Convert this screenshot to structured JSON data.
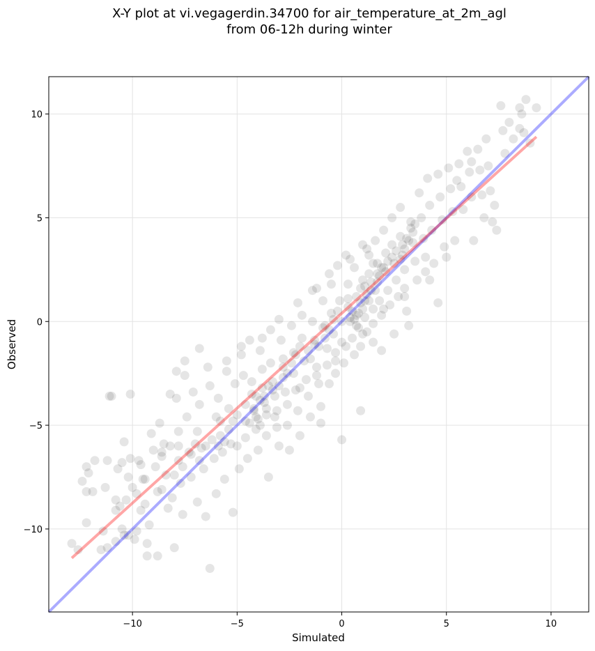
{
  "chart_data": {
    "type": "scatter",
    "title": [
      "X-Y plot at vi.vegagerdin.34700 for air_temperature_at_2m_agl",
      "from 06-12h during winter"
    ],
    "xlabel": "Simulated",
    "ylabel": "Observed",
    "xlim": [
      -14.0,
      11.8
    ],
    "ylim": [
      -14.0,
      11.8
    ],
    "xticks": [
      -10,
      -5,
      0,
      5,
      10
    ],
    "yticks": [
      -10,
      -5,
      0,
      5,
      10
    ],
    "xtick_labels": [
      "−10",
      "−5",
      "0",
      "5",
      "10"
    ],
    "ytick_labels": [
      "−10",
      "−5",
      "0",
      "5",
      "10"
    ],
    "grid": true,
    "marker_color": "#000000",
    "marker_alpha": 0.1,
    "fit_line": {
      "color": "#ff0000",
      "alpha": 0.35,
      "x": [
        -12.9,
        9.3
      ],
      "y": [
        -11.4,
        8.9
      ]
    },
    "identity_line": {
      "color": "#0000ff",
      "alpha": 0.33,
      "x": [
        -14.0,
        11.8
      ],
      "y": [
        -14.0,
        11.8
      ]
    },
    "points": [
      [
        -12.9,
        -10.7
      ],
      [
        -12.6,
        -11.0
      ],
      [
        -12.4,
        -7.7
      ],
      [
        -12.2,
        -7.0
      ],
      [
        -12.2,
        -8.2
      ],
      [
        -12.1,
        -7.3
      ],
      [
        -12.2,
        -9.7
      ],
      [
        -11.9,
        -8.2
      ],
      [
        -11.4,
        -10.1
      ],
      [
        -11.3,
        -8.0
      ],
      [
        -11.2,
        -6.7
      ],
      [
        -11.2,
        -10.9
      ],
      [
        -11.1,
        -3.6
      ],
      [
        -11.0,
        -3.6
      ],
      [
        -10.8,
        -8.6
      ],
      [
        -10.8,
        -9.1
      ],
      [
        -10.7,
        -7.1
      ],
      [
        -10.6,
        -8.9
      ],
      [
        -10.5,
        -10.0
      ],
      [
        -10.4,
        -10.3
      ],
      [
        -10.4,
        -5.8
      ],
      [
        -10.3,
        -8.6
      ],
      [
        -10.2,
        -7.5
      ],
      [
        -10.1,
        -3.5
      ],
      [
        -10.1,
        -6.6
      ],
      [
        -10.0,
        -8.0
      ],
      [
        -9.9,
        -10.5
      ],
      [
        -9.8,
        -8.3
      ],
      [
        -9.7,
        -6.7
      ],
      [
        -9.8,
        -10.1
      ],
      [
        -9.6,
        -6.9
      ],
      [
        -9.5,
        -7.6
      ],
      [
        -9.4,
        -8.8
      ],
      [
        -9.3,
        -10.7
      ],
      [
        -9.2,
        -9.8
      ],
      [
        -9.1,
        -5.4
      ],
      [
        -9.0,
        -6.2
      ],
      [
        -8.9,
        -7.0
      ],
      [
        -8.8,
        -11.3
      ],
      [
        -8.7,
        -4.9
      ],
      [
        -8.6,
        -6.3
      ],
      [
        -8.6,
        -8.1
      ],
      [
        -8.5,
        -5.9
      ],
      [
        -8.4,
        -7.4
      ],
      [
        -8.3,
        -9.0
      ],
      [
        -8.2,
        -6.0
      ],
      [
        -8.1,
        -8.5
      ],
      [
        -8.0,
        -10.9
      ],
      [
        -7.9,
        -2.4
      ],
      [
        -7.9,
        -3.7
      ],
      [
        -7.8,
        -5.3
      ],
      [
        -7.8,
        -6.7
      ],
      [
        -7.7,
        -7.8
      ],
      [
        -7.6,
        -9.3
      ],
      [
        -7.5,
        -2.6
      ],
      [
        -7.4,
        -4.6
      ],
      [
        -7.3,
        -6.3
      ],
      [
        -7.2,
        -7.5
      ],
      [
        -7.1,
        -3.4
      ],
      [
        -7.0,
        -5.9
      ],
      [
        -6.9,
        -8.7
      ],
      [
        -6.8,
        -1.3
      ],
      [
        -6.8,
        -4.0
      ],
      [
        -6.7,
        -6.1
      ],
      [
        -6.6,
        -7.1
      ],
      [
        -6.5,
        -9.4
      ],
      [
        -6.4,
        -2.2
      ],
      [
        -6.3,
        -3.1
      ],
      [
        -6.2,
        -5.7
      ],
      [
        -6.1,
        -6.6
      ],
      [
        -6.0,
        -8.3
      ],
      [
        -5.9,
        -3.7
      ],
      [
        -5.8,
        -4.8
      ],
      [
        -5.7,
        -6.3
      ],
      [
        -5.6,
        -7.6
      ],
      [
        -5.5,
        -1.9
      ],
      [
        -5.4,
        -4.2
      ],
      [
        -5.3,
        -5.9
      ],
      [
        -5.2,
        -9.2
      ],
      [
        -5.1,
        -3.0
      ],
      [
        -5.0,
        -4.5
      ],
      [
        -5.0,
        -6.0
      ],
      [
        -4.9,
        -7.1
      ],
      [
        -4.8,
        -1.6
      ],
      [
        -4.7,
        -2.6
      ],
      [
        -4.6,
        -4.8
      ],
      [
        -4.6,
        -5.6
      ],
      [
        -4.5,
        -6.6
      ],
      [
        -4.4,
        -0.9
      ],
      [
        -4.3,
        -2.9
      ],
      [
        -4.3,
        -3.5
      ],
      [
        -4.2,
        -4.2
      ],
      [
        -4.1,
        -4.6
      ],
      [
        -4.1,
        -5.2
      ],
      [
        -4.0,
        -6.2
      ],
      [
        -3.9,
        -1.4
      ],
      [
        -3.8,
        -2.3
      ],
      [
        -3.8,
        -3.2
      ],
      [
        -3.7,
        -3.9
      ],
      [
        -3.6,
        -4.5
      ],
      [
        -3.6,
        -5.5
      ],
      [
        -3.5,
        -7.5
      ],
      [
        -3.4,
        -0.4
      ],
      [
        -3.4,
        -2.0
      ],
      [
        -3.3,
        -2.9
      ],
      [
        -3.2,
        -3.6
      ],
      [
        -3.1,
        -4.3
      ],
      [
        -3.1,
        -5.1
      ],
      [
        -3.0,
        -6.0
      ],
      [
        -2.9,
        -0.9
      ],
      [
        -2.8,
        -1.8
      ],
      [
        -2.8,
        -2.7
      ],
      [
        -2.7,
        -3.4
      ],
      [
        -2.6,
        -4.0
      ],
      [
        -2.6,
        -5.0
      ],
      [
        -2.5,
        -6.2
      ],
      [
        -2.4,
        -0.2
      ],
      [
        -2.3,
        -1.5
      ],
      [
        -2.3,
        -2.5
      ],
      [
        -2.2,
        -3.3
      ],
      [
        -2.1,
        -4.3
      ],
      [
        -2.0,
        -5.5
      ],
      [
        -1.9,
        0.3
      ],
      [
        -1.9,
        -0.8
      ],
      [
        -1.8,
        -1.9
      ],
      [
        -1.7,
        -2.8
      ],
      [
        -1.6,
        -3.6
      ],
      [
        -1.5,
        -4.6
      ],
      [
        -1.4,
        1.5
      ],
      [
        -1.4,
        0.0
      ],
      [
        -1.3,
        -1.1
      ],
      [
        -1.2,
        -2.2
      ],
      [
        -1.1,
        -3.0
      ],
      [
        -1.0,
        -4.1
      ],
      [
        -1.0,
        -4.9
      ],
      [
        -0.9,
        1.0
      ],
      [
        -0.8,
        -0.2
      ],
      [
        -0.7,
        -1.3
      ],
      [
        -0.7,
        -2.1
      ],
      [
        -0.6,
        -3.0
      ],
      [
        -0.5,
        1.8
      ],
      [
        -0.5,
        0.4
      ],
      [
        -0.4,
        -0.6
      ],
      [
        -0.3,
        -1.5
      ],
      [
        -0.3,
        -2.5
      ],
      [
        -0.2,
        2.7
      ],
      [
        -0.1,
        1.0
      ],
      [
        0.0,
        0.0
      ],
      [
        0.0,
        -1.0
      ],
      [
        0.1,
        -2.0
      ],
      [
        -0.0,
        -5.7
      ],
      [
        0.2,
        3.2
      ],
      [
        0.3,
        1.8
      ],
      [
        0.3,
        0.7
      ],
      [
        0.4,
        0.0
      ],
      [
        0.5,
        -0.8
      ],
      [
        0.6,
        -1.6
      ],
      [
        0.6,
        2.6
      ],
      [
        0.7,
        1.2
      ],
      [
        0.7,
        0.3
      ],
      [
        0.8,
        -0.3
      ],
      [
        0.9,
        -1.2
      ],
      [
        0.9,
        -4.3
      ],
      [
        1.0,
        3.7
      ],
      [
        1.0,
        2.0
      ],
      [
        1.1,
        1.0
      ],
      [
        1.1,
        0.2
      ],
      [
        1.2,
        -0.5
      ],
      [
        1.3,
        3.2
      ],
      [
        1.3,
        2.3
      ],
      [
        1.4,
        1.5
      ],
      [
        1.5,
        0.6
      ],
      [
        1.5,
        -0.1
      ],
      [
        1.6,
        3.9
      ],
      [
        1.7,
        2.8
      ],
      [
        1.7,
        1.9
      ],
      [
        1.8,
        1.0
      ],
      [
        1.9,
        0.3
      ],
      [
        1.9,
        -1.4
      ],
      [
        2.0,
        4.4
      ],
      [
        2.1,
        3.3
      ],
      [
        2.1,
        2.4
      ],
      [
        2.2,
        1.5
      ],
      [
        2.3,
        0.8
      ],
      [
        2.4,
        5.0
      ],
      [
        2.4,
        3.7
      ],
      [
        2.5,
        2.8
      ],
      [
        2.6,
        2.0
      ],
      [
        2.7,
        1.2
      ],
      [
        2.8,
        5.5
      ],
      [
        2.8,
        4.1
      ],
      [
        2.9,
        3.2
      ],
      [
        3.0,
        2.5
      ],
      [
        3.0,
        1.6
      ],
      [
        3.1,
        0.5
      ],
      [
        3.2,
        -0.2
      ],
      [
        3.3,
        4.8
      ],
      [
        3.4,
        3.8
      ],
      [
        3.5,
        2.9
      ],
      [
        3.6,
        2.0
      ],
      [
        3.7,
        6.2
      ],
      [
        3.8,
        5.0
      ],
      [
        3.9,
        4.0
      ],
      [
        4.0,
        3.1
      ],
      [
        4.1,
        6.9
      ],
      [
        4.2,
        5.6
      ],
      [
        4.3,
        4.4
      ],
      [
        4.4,
        2.8
      ],
      [
        4.6,
        0.9
      ],
      [
        4.6,
        7.1
      ],
      [
        4.7,
        6.0
      ],
      [
        4.8,
        4.9
      ],
      [
        4.9,
        3.6
      ],
      [
        5.1,
        7.4
      ],
      [
        5.2,
        6.4
      ],
      [
        5.3,
        5.3
      ],
      [
        5.4,
        3.9
      ],
      [
        5.6,
        7.6
      ],
      [
        5.7,
        6.5
      ],
      [
        5.8,
        5.4
      ],
      [
        6.0,
        8.2
      ],
      [
        6.1,
        7.2
      ],
      [
        6.2,
        6.0
      ],
      [
        6.3,
        3.9
      ],
      [
        6.5,
        8.3
      ],
      [
        6.6,
        7.3
      ],
      [
        6.7,
        6.1
      ],
      [
        6.9,
        8.8
      ],
      [
        7.0,
        7.5
      ],
      [
        7.1,
        6.3
      ],
      [
        7.2,
        4.8
      ],
      [
        7.4,
        4.4
      ],
      [
        7.6,
        10.4
      ],
      [
        7.7,
        9.2
      ],
      [
        7.8,
        8.1
      ],
      [
        8.0,
        9.6
      ],
      [
        8.2,
        8.8
      ],
      [
        8.5,
        9.3
      ],
      [
        8.8,
        10.7
      ],
      [
        8.6,
        10.0
      ],
      [
        8.7,
        9.1
      ],
      [
        9.0,
        8.6
      ],
      [
        9.3,
        10.3
      ],
      [
        8.5,
        10.3
      ],
      [
        -6.3,
        -11.9
      ],
      [
        -9.3,
        -11.3
      ],
      [
        1.5,
        -1.0
      ],
      [
        2.5,
        -0.6
      ],
      [
        -4.2,
        -4.3
      ],
      [
        -4.0,
        -4.7
      ],
      [
        -3.9,
        -3.8
      ],
      [
        -4.4,
        -4.9
      ],
      [
        -3.7,
        -3.6
      ],
      [
        -3.5,
        -3.1
      ],
      [
        -4.1,
        -3.6
      ],
      [
        -4.6,
        -4.0
      ],
      [
        -3.6,
        -4.2
      ],
      [
        -3.3,
        -3.3
      ],
      [
        -5.8,
        -5.5
      ],
      [
        -5.6,
        -5.8
      ],
      [
        -5.4,
        -5.2
      ],
      [
        -5.9,
        -6.0
      ],
      [
        -5.2,
        -4.8
      ],
      [
        -2.8,
        -2.2
      ],
      [
        -1.6,
        -1.4
      ],
      [
        -1.3,
        -0.9
      ],
      [
        -1.1,
        -1.2
      ],
      [
        -0.8,
        -0.8
      ],
      [
        -0.6,
        -0.4
      ],
      [
        -1.5,
        -1.8
      ],
      [
        -2.0,
        -1.2
      ],
      [
        0.6,
        0.1
      ],
      [
        0.8,
        0.4
      ],
      [
        0.5,
        0.5
      ],
      [
        0.9,
        0.9
      ],
      [
        0.7,
        -0.2
      ],
      [
        0.4,
        0.2
      ],
      [
        1.0,
        0.6
      ],
      [
        1.2,
        1.3
      ],
      [
        1.4,
        1.9
      ],
      [
        1.6,
        1.5
      ],
      [
        1.1,
        1.7
      ],
      [
        1.8,
        2.2
      ],
      [
        2.0,
        2.6
      ],
      [
        2.2,
        2.9
      ],
      [
        2.4,
        3.1
      ],
      [
        2.6,
        3.4
      ],
      [
        2.8,
        3.0
      ],
      [
        3.0,
        3.5
      ],
      [
        3.2,
        3.9
      ],
      [
        3.4,
        4.3
      ],
      [
        3.5,
        4.7
      ],
      [
        3.3,
        4.5
      ],
      [
        3.1,
        4.0
      ],
      [
        2.9,
        3.7
      ],
      [
        1.9,
        2.6
      ],
      [
        1.7,
        2.3
      ],
      [
        1.3,
        1.0
      ],
      [
        1.5,
        2.8
      ],
      [
        0.9,
        1.6
      ],
      [
        0.3,
        1.1
      ],
      [
        -0.2,
        0.5
      ],
      [
        -0.4,
        0.1
      ],
      [
        -0.9,
        -0.3
      ],
      [
        -2.4,
        -2.0
      ],
      [
        -2.6,
        -2.5
      ],
      [
        -2.2,
        -1.6
      ],
      [
        -3.0,
        -3.1
      ],
      [
        -6.8,
        -6.7
      ],
      [
        -7.2,
        -6.4
      ],
      [
        -6.5,
        -6.0
      ],
      [
        -7.6,
        -7.0
      ],
      [
        -8.0,
        -7.4
      ],
      [
        -8.8,
        -8.2
      ],
      [
        -9.6,
        -9.1
      ],
      [
        -10.2,
        -10.3
      ],
      [
        -10.8,
        -10.6
      ],
      [
        -11.5,
        -11.0
      ],
      [
        -3.2,
        -4.6
      ],
      [
        -3.9,
        -5.0
      ],
      [
        -2.0,
        -3.2
      ],
      [
        -1.2,
        -2.6
      ],
      [
        -0.3,
        -1.9
      ],
      [
        0.2,
        -1.2
      ],
      [
        1.0,
        -0.6
      ],
      [
        2.0,
        0.6
      ],
      [
        3.0,
        1.2
      ],
      [
        4.0,
        2.4
      ],
      [
        -6.0,
        -4.6
      ],
      [
        -6.9,
        -5.3
      ],
      [
        -7.8,
        -6.0
      ],
      [
        -8.6,
        -6.5
      ],
      [
        -9.4,
        -7.6
      ],
      [
        -10.5,
        -6.8
      ],
      [
        -11.8,
        -6.7
      ],
      [
        -5.5,
        -2.4
      ],
      [
        -4.8,
        -1.2
      ],
      [
        -3.8,
        -0.8
      ],
      [
        -3.0,
        0.1
      ],
      [
        -2.1,
        0.9
      ],
      [
        -1.2,
        1.6
      ],
      [
        -0.6,
        2.3
      ],
      [
        0.4,
        3.0
      ],
      [
        1.2,
        3.5
      ],
      [
        5.5,
        6.8
      ],
      [
        6.2,
        7.7
      ],
      [
        7.3,
        5.6
      ],
      [
        6.8,
        5.0
      ],
      [
        5.0,
        3.1
      ],
      [
        4.2,
        2.0
      ],
      [
        -8.2,
        -3.5
      ],
      [
        -7.5,
        -1.9
      ]
    ]
  }
}
